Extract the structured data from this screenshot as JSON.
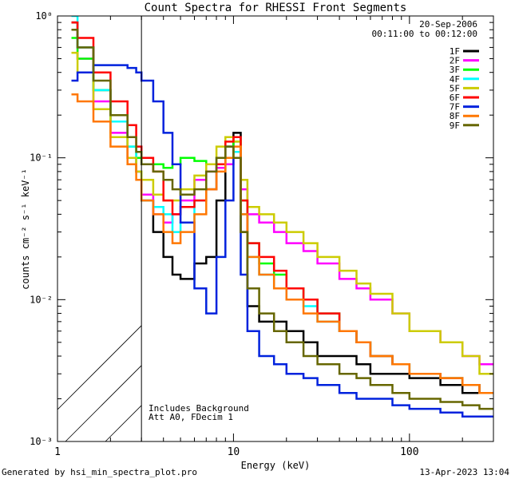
{
  "chart_data": {
    "type": "line",
    "title": "Count Spectra for RHESSI Front Segments",
    "xlabel": "Energy (keV)",
    "ylabel": "counts cm⁻² s⁻¹ keV⁻¹",
    "xscale": "log",
    "yscale": "log",
    "xlim": [
      1,
      300
    ],
    "ylim": [
      0.001,
      1
    ],
    "x_tick_labels": [
      "1",
      "10",
      "100"
    ],
    "y_tick_labels": [
      "10⁻³",
      "10⁻²",
      "10⁻¹",
      "10⁰"
    ],
    "legend_position": "top-right",
    "header": {
      "date": "20-Sep-2006",
      "time_range": "00:11:00 to 00:12:00"
    },
    "annotations": [
      "Includes Background",
      "Att A0, FDecim 1"
    ],
    "hatched_region_below_keV": 3,
    "series": [
      {
        "name": "1F",
        "color": "#000000",
        "x": [
          1.3,
          1.6,
          2.0,
          2.5,
          2.8,
          3.0,
          3.5,
          4.0,
          4.5,
          5.0,
          6.0,
          7.0,
          8.0,
          9.0,
          10.0,
          11.0,
          12.0,
          14.0,
          17.0,
          20.0,
          25.0,
          30.0,
          40.0,
          50.0,
          60.0,
          80.0,
          100.0,
          150.0,
          200.0,
          250.0,
          300.0
        ],
        "y": [
          0.9,
          0.6,
          0.3,
          0.18,
          0.1,
          0.08,
          0.05,
          0.03,
          0.02,
          0.015,
          0.014,
          0.018,
          0.02,
          0.05,
          0.12,
          0.15,
          0.03,
          0.009,
          0.007,
          0.007,
          0.006,
          0.005,
          0.004,
          0.004,
          0.0035,
          0.003,
          0.003,
          0.0028,
          0.0025,
          0.0022,
          0.0022
        ]
      },
      {
        "name": "2F",
        "color": "#ff00ff",
        "x": [
          1.3,
          1.6,
          2.0,
          2.5,
          2.8,
          3.0,
          3.5,
          4.0,
          4.5,
          5.0,
          6.0,
          7.0,
          8.0,
          9.0,
          10.0,
          11.0,
          12.0,
          14.0,
          17.0,
          20.0,
          25.0,
          30.0,
          40.0,
          50.0,
          60.0,
          80.0,
          100.0,
          150.0,
          200.0,
          250.0,
          300.0
        ],
        "y": [
          0.8,
          0.5,
          0.25,
          0.15,
          0.1,
          0.08,
          0.055,
          0.04,
          0.035,
          0.04,
          0.05,
          0.07,
          0.08,
          0.085,
          0.09,
          0.1,
          0.06,
          0.04,
          0.035,
          0.03,
          0.025,
          0.022,
          0.018,
          0.014,
          0.012,
          0.01,
          0.008,
          0.006,
          0.005,
          0.004,
          0.0035
        ]
      },
      {
        "name": "3F",
        "color": "#00ff00",
        "x": [
          1.3,
          1.6,
          2.0,
          2.5,
          2.8,
          3.0,
          3.5,
          4.0,
          4.5,
          5.0,
          6.0,
          7.0,
          8.0,
          9.0,
          10.0,
          11.0,
          12.0,
          14.0,
          17.0,
          20.0,
          25.0,
          30.0,
          40.0,
          50.0,
          60.0,
          80.0,
          100.0,
          150.0,
          200.0,
          250.0,
          300.0
        ],
        "y": [
          0.7,
          0.5,
          0.3,
          0.18,
          0.12,
          0.1,
          0.09,
          0.09,
          0.085,
          0.09,
          0.1,
          0.095,
          0.09,
          0.09,
          0.1,
          0.13,
          0.05,
          0.025,
          0.018,
          0.015,
          0.012,
          0.01,
          0.008,
          0.006,
          0.005,
          0.004,
          0.0035,
          0.003,
          0.0028,
          0.0025,
          0.0022
        ]
      },
      {
        "name": "4F",
        "color": "#00ffff",
        "x": [
          1.3,
          1.6,
          2.0,
          2.5,
          2.8,
          3.0,
          3.5,
          4.0,
          4.5,
          5.0,
          6.0,
          7.0,
          8.0,
          9.0,
          10.0,
          11.0,
          12.0,
          14.0,
          17.0,
          20.0,
          25.0,
          30.0,
          40.0,
          50.0,
          60.0,
          80.0,
          100.0,
          150.0,
          200.0,
          250.0,
          300.0
        ],
        "y": [
          1.0,
          0.6,
          0.3,
          0.18,
          0.12,
          0.08,
          0.05,
          0.045,
          0.04,
          0.03,
          0.035,
          0.05,
          0.06,
          0.1,
          0.12,
          0.11,
          0.04,
          0.02,
          0.015,
          0.012,
          0.01,
          0.009,
          0.007,
          0.006,
          0.005,
          0.004,
          0.0035,
          0.003,
          0.0028,
          0.0025,
          0.0022
        ]
      },
      {
        "name": "5F",
        "color": "#cccc00",
        "x": [
          1.3,
          1.6,
          2.0,
          2.5,
          2.8,
          3.0,
          3.5,
          4.0,
          4.5,
          5.0,
          6.0,
          7.0,
          8.0,
          9.0,
          10.0,
          11.0,
          12.0,
          14.0,
          17.0,
          20.0,
          25.0,
          30.0,
          40.0,
          50.0,
          60.0,
          80.0,
          100.0,
          150.0,
          200.0,
          250.0,
          300.0
        ],
        "y": [
          0.55,
          0.4,
          0.22,
          0.14,
          0.1,
          0.08,
          0.07,
          0.055,
          0.05,
          0.05,
          0.06,
          0.075,
          0.09,
          0.12,
          0.14,
          0.13,
          0.07,
          0.045,
          0.04,
          0.035,
          0.03,
          0.025,
          0.02,
          0.016,
          0.013,
          0.011,
          0.008,
          0.006,
          0.005,
          0.004,
          0.003
        ]
      },
      {
        "name": "6F",
        "color": "#ff0000",
        "x": [
          1.3,
          1.6,
          2.0,
          2.5,
          2.8,
          3.0,
          3.5,
          4.0,
          4.5,
          5.0,
          6.0,
          7.0,
          8.0,
          9.0,
          10.0,
          11.0,
          12.0,
          14.0,
          17.0,
          20.0,
          25.0,
          30.0,
          40.0,
          50.0,
          60.0,
          80.0,
          100.0,
          150.0,
          200.0,
          250.0,
          300.0
        ],
        "y": [
          0.9,
          0.7,
          0.4,
          0.25,
          0.17,
          0.12,
          0.1,
          0.08,
          0.05,
          0.04,
          0.045,
          0.05,
          0.06,
          0.09,
          0.13,
          0.14,
          0.05,
          0.025,
          0.02,
          0.016,
          0.012,
          0.01,
          0.008,
          0.006,
          0.005,
          0.004,
          0.0035,
          0.003,
          0.0028,
          0.0025,
          0.0022
        ]
      },
      {
        "name": "7F",
        "color": "#0022dd",
        "x": [
          1.3,
          1.6,
          2.0,
          2.5,
          2.8,
          3.0,
          3.5,
          4.0,
          4.5,
          5.0,
          6.0,
          7.0,
          8.0,
          9.0,
          10.0,
          11.0,
          12.0,
          14.0,
          17.0,
          20.0,
          25.0,
          30.0,
          40.0,
          50.0,
          60.0,
          80.0,
          100.0,
          150.0,
          200.0,
          250.0,
          300.0
        ],
        "y": [
          0.35,
          0.4,
          0.45,
          0.45,
          0.43,
          0.4,
          0.35,
          0.25,
          0.15,
          0.09,
          0.035,
          0.012,
          0.008,
          0.02,
          0.05,
          0.1,
          0.015,
          0.006,
          0.004,
          0.0035,
          0.003,
          0.0028,
          0.0025,
          0.0022,
          0.002,
          0.002,
          0.0018,
          0.0017,
          0.0016,
          0.0015,
          0.0015
        ]
      },
      {
        "name": "8F",
        "color": "#ff7700",
        "x": [
          1.3,
          1.6,
          2.0,
          2.5,
          2.8,
          3.0,
          3.5,
          4.0,
          4.5,
          5.0,
          6.0,
          7.0,
          8.0,
          9.0,
          10.0,
          11.0,
          12.0,
          14.0,
          17.0,
          20.0,
          25.0,
          30.0,
          40.0,
          50.0,
          60.0,
          80.0,
          100.0,
          150.0,
          200.0,
          250.0,
          300.0
        ],
        "y": [
          0.28,
          0.25,
          0.18,
          0.12,
          0.09,
          0.07,
          0.05,
          0.04,
          0.03,
          0.025,
          0.03,
          0.04,
          0.06,
          0.08,
          0.1,
          0.12,
          0.04,
          0.02,
          0.015,
          0.012,
          0.01,
          0.008,
          0.007,
          0.006,
          0.005,
          0.004,
          0.0035,
          0.003,
          0.0028,
          0.0025,
          0.0022
        ]
      },
      {
        "name": "9F",
        "color": "#666600",
        "x": [
          1.3,
          1.6,
          2.0,
          2.5,
          2.8,
          3.0,
          3.5,
          4.0,
          4.5,
          5.0,
          6.0,
          7.0,
          8.0,
          9.0,
          10.0,
          11.0,
          12.0,
          14.0,
          17.0,
          20.0,
          25.0,
          30.0,
          40.0,
          50.0,
          60.0,
          80.0,
          100.0,
          150.0,
          200.0,
          250.0,
          300.0
        ],
        "y": [
          0.8,
          0.6,
          0.35,
          0.2,
          0.14,
          0.11,
          0.09,
          0.08,
          0.07,
          0.06,
          0.055,
          0.06,
          0.08,
          0.1,
          0.12,
          0.1,
          0.03,
          0.012,
          0.008,
          0.006,
          0.005,
          0.004,
          0.0035,
          0.003,
          0.0028,
          0.0025,
          0.0022,
          0.002,
          0.0019,
          0.0018,
          0.0017
        ]
      }
    ]
  },
  "footer": {
    "generated_by": "Generated by hsi_min_spectra_plot.pro",
    "timestamp": "13-Apr-2023 13:04"
  }
}
